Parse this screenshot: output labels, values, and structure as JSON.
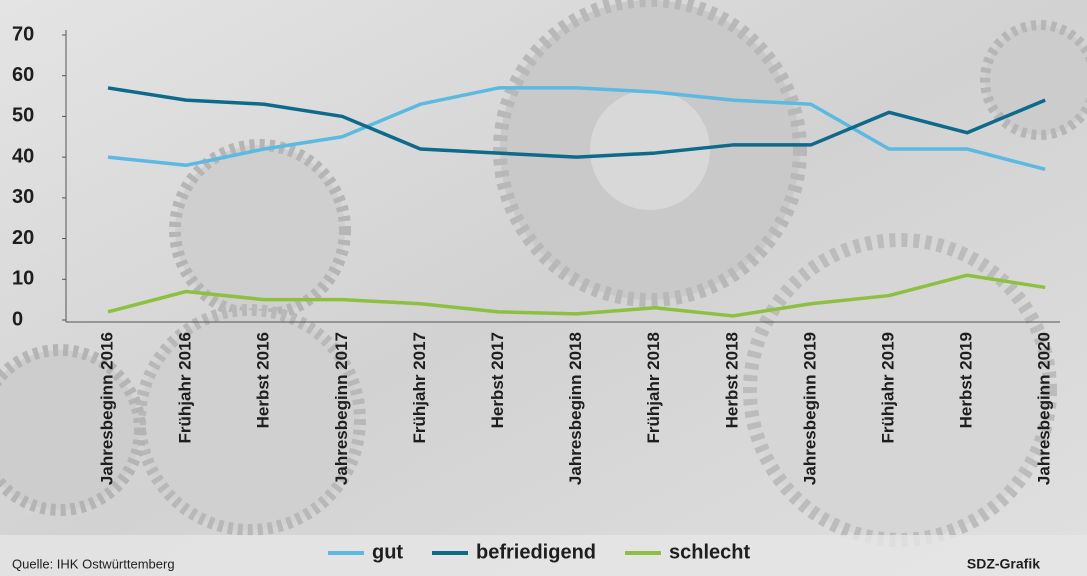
{
  "chart_data": {
    "type": "line",
    "categories": [
      "Jahresbeginn 2016",
      "Frühjahr 2016",
      "Herbst 2016",
      "Jahresbeginn 2017",
      "Frühjahr 2017",
      "Herbst 2017",
      "Jahresbeginn 2018",
      "Frühjahr 2018",
      "Herbst 2018",
      "Jahresbeginn 2019",
      "Frühjahr 2019",
      "Herbst 2019",
      "Jahresbeginn 2020"
    ],
    "series": [
      {
        "name": "gut",
        "color": "#5bb9e2",
        "values": [
          40,
          38,
          42,
          45,
          53,
          57,
          57,
          56,
          54,
          53,
          42,
          42,
          37
        ]
      },
      {
        "name": "befriedigend",
        "color": "#0e6a8b",
        "values": [
          57,
          54,
          53,
          50,
          42,
          41,
          40,
          41,
          43,
          43,
          51,
          46,
          54
        ]
      },
      {
        "name": "schlecht",
        "color": "#8dc041",
        "values": [
          2,
          7,
          5,
          5,
          4,
          2,
          1.5,
          3,
          1,
          4,
          6,
          11,
          8
        ]
      }
    ],
    "ylim": [
      0,
      70
    ],
    "yticks": [
      0,
      10,
      20,
      30,
      40,
      50,
      60,
      70
    ],
    "source": "Quelle: IHK Ostwürttemberg",
    "credit": "SDZ-Grafik"
  }
}
